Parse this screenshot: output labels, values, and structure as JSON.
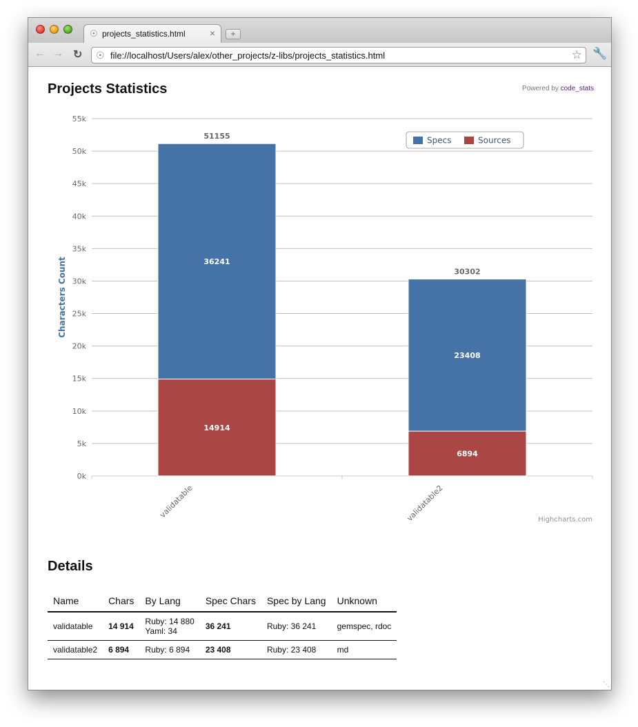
{
  "browser": {
    "tab_title": "projects_statistics.html",
    "url": "file://localhost/Users/alex/other_projects/z-libs/projects_statistics.html"
  },
  "page": {
    "title": "Projects Statistics",
    "powered_prefix": "Powered by",
    "powered_link": "code_stats",
    "credits": "Highcharts.com"
  },
  "chart_data": {
    "type": "bar",
    "stacked": true,
    "categories": [
      "validatable",
      "validatable2"
    ],
    "series": [
      {
        "name": "Specs",
        "values": [
          36241,
          23408
        ],
        "color": "#4572A7"
      },
      {
        "name": "Sources",
        "values": [
          14914,
          6894
        ],
        "color": "#AA4643"
      }
    ],
    "totals": [
      51155,
      30302
    ],
    "ylabel": "Characters Count",
    "ylim": [
      0,
      55000
    ],
    "y_ticks": [
      "0k",
      "5k",
      "10k",
      "15k",
      "20k",
      "25k",
      "30k",
      "35k",
      "40k",
      "45k",
      "50k",
      "55k"
    ],
    "legend_position": "top-right",
    "grid": true
  },
  "details": {
    "title": "Details",
    "headers": [
      "Name",
      "Chars",
      "By Lang",
      "Spec Chars",
      "Spec by Lang",
      "Unknown"
    ],
    "rows": [
      {
        "name": "validatable",
        "chars": "14 914",
        "by_lang": [
          "Ruby: 14 880",
          "Yaml: 34"
        ],
        "spec_chars": "36 241",
        "spec_by_lang": "Ruby: 36 241",
        "unknown": "gemspec, rdoc"
      },
      {
        "name": "validatable2",
        "chars": "6 894",
        "by_lang": [
          "Ruby: 6 894"
        ],
        "spec_chars": "23 408",
        "spec_by_lang": "Ruby: 23 408",
        "unknown": "md"
      }
    ]
  }
}
